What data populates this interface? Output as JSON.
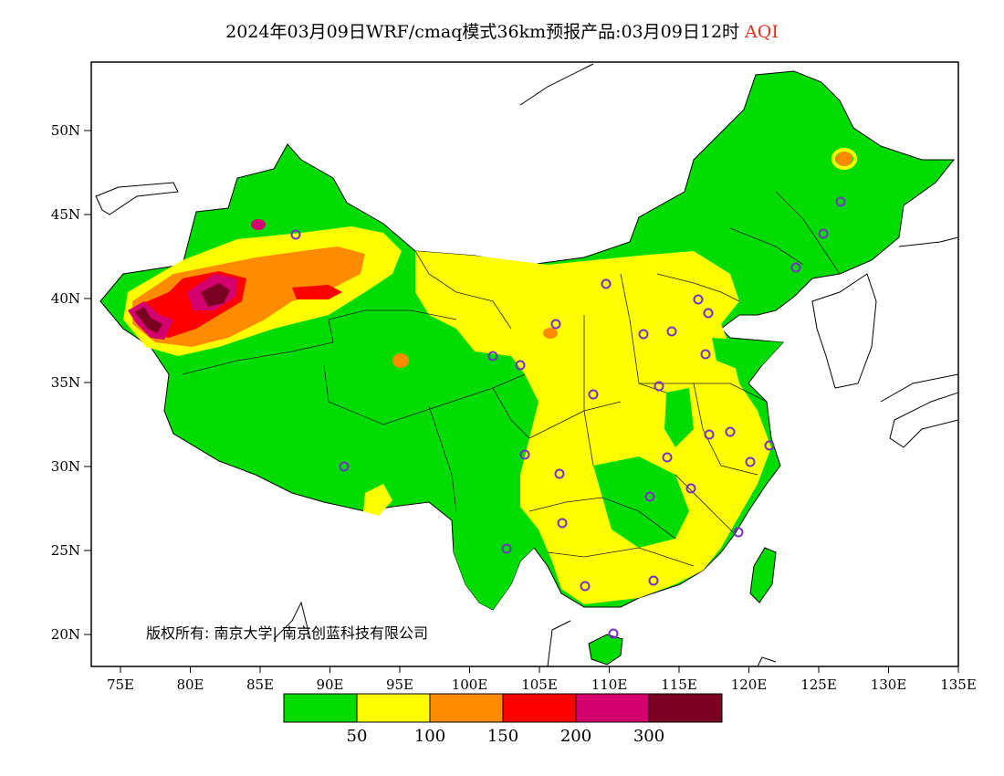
{
  "title": {
    "main": "2024年03月09日WRF/cmaq模式36km预报产品:03月09日12时",
    "variable": "AQI"
  },
  "lat_labels": [
    "50N",
    "45N",
    "40N",
    "35N",
    "30N",
    "25N",
    "20N"
  ],
  "lon_labels": [
    "75E",
    "80E",
    "85E",
    "90E",
    "95E",
    "100E",
    "105E",
    "110E",
    "115E",
    "120E",
    "125E",
    "130E",
    "135E"
  ],
  "legend": {
    "colors": [
      "#00dc00",
      "#ffff00",
      "#ff8c00",
      "#ff0000",
      "#d4006e",
      "#7a0022"
    ],
    "labels": [
      "50",
      "100",
      "150",
      "200",
      "300"
    ]
  },
  "copyright": "版权所有: 南京大学| 南京创蓝科技有限公司",
  "colors": {
    "frame": "#000000",
    "boundary": "#222222",
    "station": "#7a30c8"
  }
}
